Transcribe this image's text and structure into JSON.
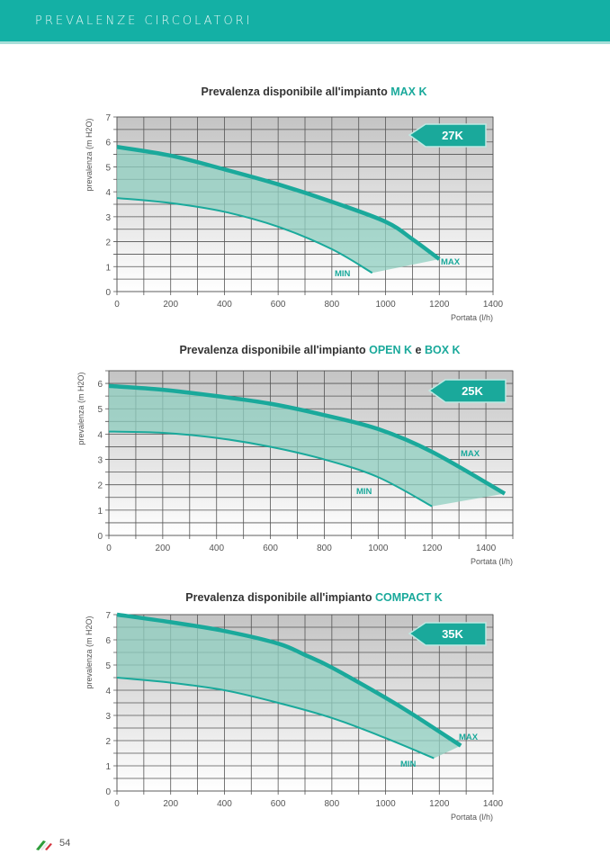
{
  "header": {
    "title": "PREVALENZE CIRCOLATORI"
  },
  "footer": {
    "page_number": "54"
  },
  "colors": {
    "accent": "#1aa99b",
    "fill": "#8fcfc0",
    "title": "#333333",
    "header_bg": "#14b0a5"
  },
  "chart_data": [
    {
      "type": "line",
      "title": "Prevalenza disponibile all'impianto ",
      "title_highlight": "MAX K",
      "xlabel": "Portata (l/h)",
      "ylabel": "prevalenza (m H2O)",
      "xlim": [
        0,
        1400
      ],
      "ylim": [
        0,
        7
      ],
      "xticks": [
        0,
        200,
        400,
        600,
        800,
        1000,
        1200,
        1400
      ],
      "yticks": [
        0,
        1,
        2,
        3,
        4,
        5,
        6,
        7
      ],
      "grid": true,
      "badge": "27K",
      "series": [
        {
          "name": "MAX",
          "x": [
            0,
            200,
            400,
            600,
            800,
            1000,
            1100,
            1200
          ],
          "y": [
            5.8,
            5.45,
            4.9,
            4.3,
            3.6,
            2.8,
            2.1,
            1.3
          ]
        },
        {
          "name": "MIN",
          "x": [
            0,
            200,
            400,
            600,
            800,
            950
          ],
          "y": [
            3.75,
            3.55,
            3.2,
            2.6,
            1.7,
            0.75
          ]
        }
      ]
    },
    {
      "type": "line",
      "title": "Prevalenza disponibile all'impianto ",
      "title_highlight": "OPEN K",
      "title_mid": " e ",
      "title_highlight2": "BOX K",
      "xlabel": "Portata (l/h)",
      "ylabel": "prevalenza (m H2O)",
      "xlim": [
        0,
        1500
      ],
      "ylim": [
        0,
        6.5
      ],
      "xticks": [
        0,
        200,
        400,
        600,
        800,
        1000,
        1200,
        1400
      ],
      "yticks": [
        0,
        1,
        2,
        3,
        4,
        5,
        6
      ],
      "grid": true,
      "badge": "25K",
      "series": [
        {
          "name": "MAX",
          "x": [
            0,
            200,
            400,
            600,
            800,
            1000,
            1200,
            1470
          ],
          "y": [
            5.9,
            5.75,
            5.5,
            5.2,
            4.75,
            4.2,
            3.3,
            1.65
          ]
        },
        {
          "name": "MIN",
          "x": [
            0,
            200,
            400,
            600,
            800,
            1000,
            1200
          ],
          "y": [
            4.1,
            4.05,
            3.85,
            3.5,
            3.0,
            2.3,
            1.15
          ]
        }
      ]
    },
    {
      "type": "line",
      "title": "Prevalenza disponibile all'impianto ",
      "title_highlight": "COMPACT K",
      "xlabel": "Portata (l/h)",
      "ylabel": "prevalenza (m H2O)",
      "xlim": [
        0,
        1400
      ],
      "ylim": [
        0,
        7
      ],
      "xticks": [
        0,
        200,
        400,
        600,
        800,
        1000,
        1200,
        1400
      ],
      "yticks": [
        0,
        1,
        2,
        3,
        4,
        5,
        6,
        7
      ],
      "grid": true,
      "badge": "35K",
      "series": [
        {
          "name": "MAX",
          "x": [
            0,
            200,
            400,
            600,
            700,
            800,
            1000,
            1100,
            1280
          ],
          "y": [
            7.0,
            6.7,
            6.35,
            5.85,
            5.4,
            4.9,
            3.7,
            3.05,
            1.8
          ]
        },
        {
          "name": "MIN",
          "x": [
            0,
            200,
            400,
            600,
            800,
            1000,
            1180
          ],
          "y": [
            4.5,
            4.3,
            4.0,
            3.5,
            2.9,
            2.1,
            1.3
          ]
        }
      ]
    }
  ]
}
